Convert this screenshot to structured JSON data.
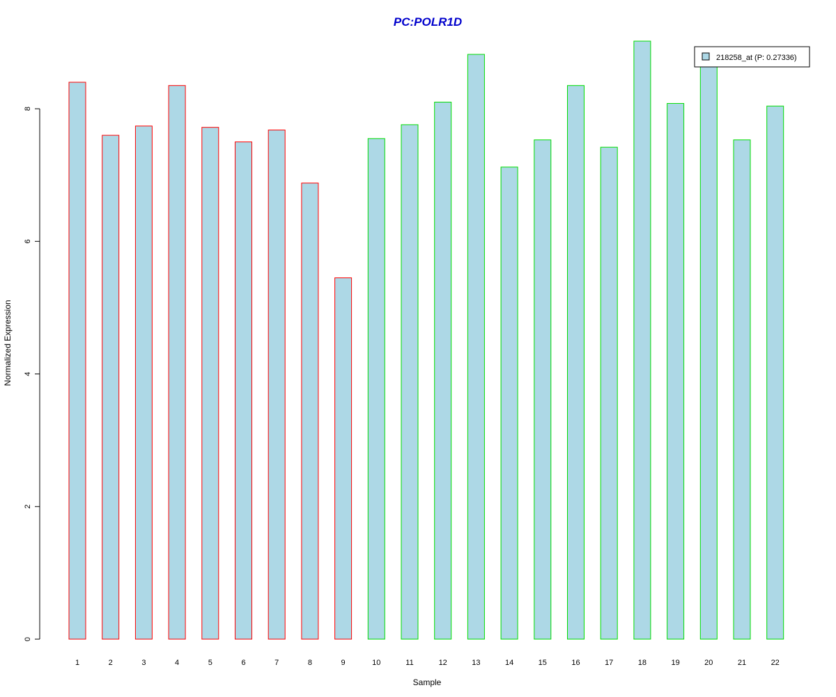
{
  "chart_data": {
    "type": "bar",
    "title": "PC:POLR1D",
    "xlabel": "Sample",
    "ylabel": "Normalized Expression",
    "categories": [
      "1",
      "2",
      "3",
      "4",
      "5",
      "6",
      "7",
      "8",
      "9",
      "10",
      "11",
      "12",
      "13",
      "14",
      "15",
      "16",
      "17",
      "18",
      "19",
      "20",
      "21",
      "22"
    ],
    "values": [
      8.4,
      7.6,
      7.74,
      8.35,
      7.72,
      7.5,
      7.68,
      6.88,
      5.45,
      7.55,
      7.76,
      8.1,
      8.82,
      7.12,
      7.53,
      8.35,
      7.42,
      9.02,
      8.08,
      8.72,
      7.53,
      8.04
    ],
    "groups": [
      1,
      1,
      1,
      1,
      1,
      1,
      1,
      1,
      1,
      2,
      2,
      2,
      2,
      2,
      2,
      2,
      2,
      2,
      2,
      2,
      2,
      2
    ],
    "ylim": [
      0,
      9.02
    ],
    "yticks": [
      "0",
      "2",
      "4",
      "6",
      "8"
    ],
    "legend": {
      "position": "top-right",
      "entries": [
        {
          "label": "218258_at (P: 0.27336)",
          "color": "#add8e6"
        }
      ]
    },
    "colors": {
      "bar_fill": "#add8e6",
      "group1_border": "#ff0000",
      "group2_border": "#00dd00",
      "title": "#0000cc"
    }
  }
}
